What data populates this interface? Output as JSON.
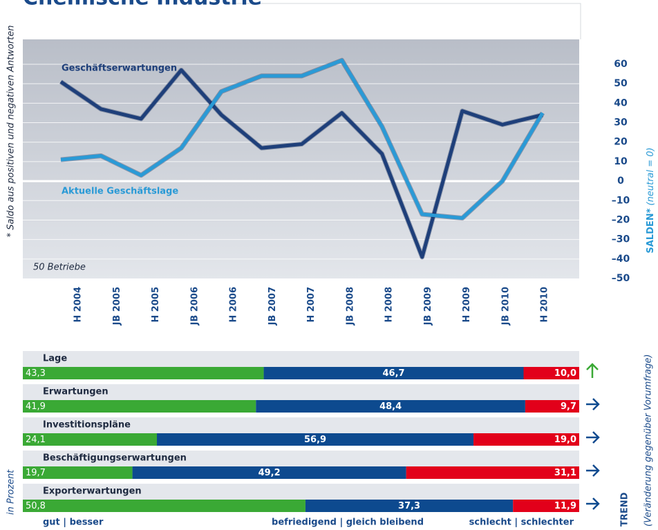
{
  "title": "Chemische Industrie",
  "chart_data": [
    {
      "type": "line",
      "categories": [
        "H 2004",
        "JB 2005",
        "H 2005",
        "JB 2006",
        "H 2006",
        "JB 2007",
        "H 2007",
        "JB 2008",
        "H 2008",
        "JB 2009",
        "H 2009",
        "JB 2010",
        "H 2010"
      ],
      "series": [
        {
          "name": "Geschäftserwartungen",
          "color": "#1e3f7a",
          "values": [
            51,
            37,
            32,
            57,
            34,
            17,
            19,
            35,
            14,
            -39,
            36,
            29,
            34
          ]
        },
        {
          "name": "Aktuelle Geschäftslage",
          "color": "#2a9ad6",
          "values": [
            11,
            13,
            3,
            17,
            46,
            54,
            54,
            62,
            28,
            -17,
            -19,
            0,
            35
          ]
        }
      ],
      "ylim": [
        -50,
        60
      ],
      "yticks": [
        60,
        50,
        40,
        30,
        20,
        10,
        0,
        {
          "value": -10,
          "label": "–10"
        },
        {
          "value": -20,
          "label": "–20"
        },
        {
          "value": -30,
          "label": "–30"
        },
        {
          "value": -40,
          "label": "–40"
        },
        {
          "value": -50,
          "label": "–50"
        }
      ],
      "grid": true,
      "annotations": [
        "50 Betriebe",
        "* Saldo aus positiven und negativen Antworten"
      ],
      "y_label": "SALDEN*",
      "y_label_note": "(neutral = 0)"
    },
    {
      "type": "bar",
      "orientation": "horizontal",
      "stacked": true,
      "categories": [
        "Lage",
        "Erwartungen",
        "Investitionspläne",
        "Beschäftigungserwartungen",
        "Exporterwartungen"
      ],
      "series": [
        {
          "name": "gut | besser",
          "color": "#3aa935",
          "values": [
            43.3,
            41.9,
            24.1,
            19.7,
            50.8
          ],
          "value_labels": [
            "43,3",
            "41,9",
            "24,1",
            "19,7",
            "50,8"
          ]
        },
        {
          "name": "befriedigend | gleich bleibend",
          "color": "#0d4a8f",
          "values": [
            46.7,
            48.4,
            56.9,
            49.2,
            37.3
          ],
          "value_labels": [
            "46,7",
            "48,4",
            "56,9",
            "49,2",
            "37,3"
          ]
        },
        {
          "name": "schlecht | schlechter",
          "color": "#e2001a",
          "values": [
            10.0,
            9.7,
            19.0,
            31.1,
            11.9
          ],
          "value_labels": [
            "10,0",
            "9,7",
            "19,0",
            "31,1",
            "11,9"
          ]
        }
      ],
      "xlim": [
        0,
        100
      ],
      "unit_label": "in Prozent",
      "trend": [
        "up",
        "right",
        "right",
        "right",
        "right"
      ],
      "trend_colors": {
        "up": "#3aa935",
        "right": "#0d4a8f"
      },
      "trend_label": "TREND",
      "trend_note": "(Veränderung gegenüber Vorumfrage)"
    }
  ]
}
